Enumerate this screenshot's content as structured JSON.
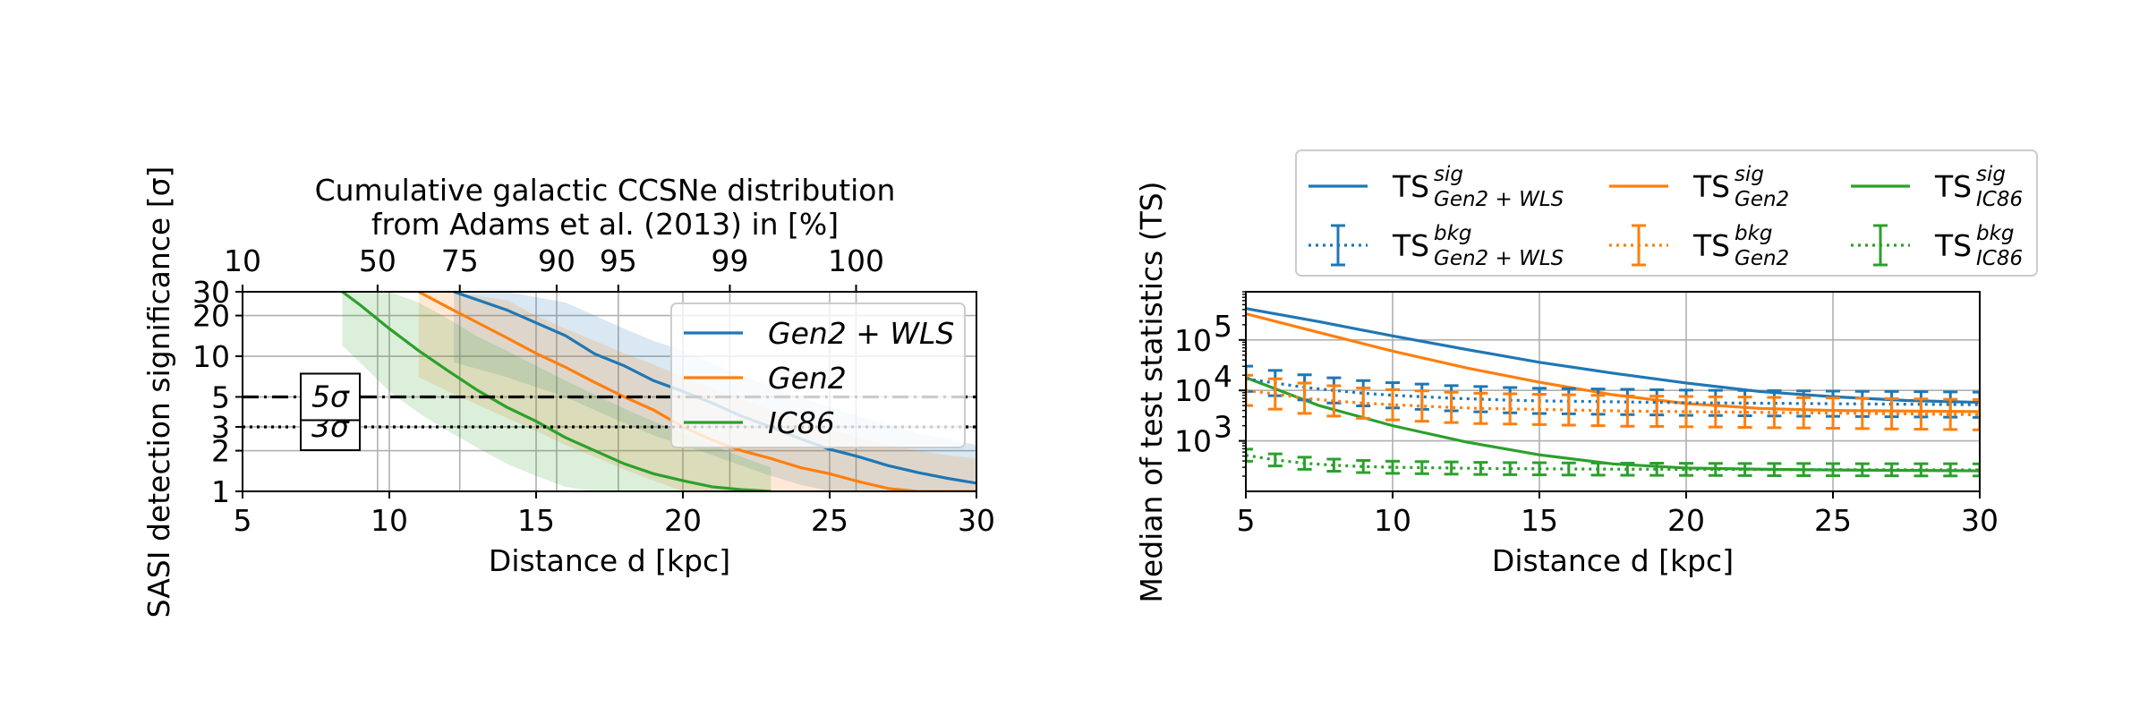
{
  "chart_data": [
    {
      "type": "line",
      "title_lines": [
        "Cumulative galactic CCSNe distribution",
        "from Adams et al. (2013) in [%]"
      ],
      "xlabel": "Distance d [kpc]",
      "ylabel": "SASI detection significance [σ]",
      "xlim": [
        5,
        30
      ],
      "ylim": [
        1,
        30
      ],
      "yscale": "log",
      "grid": true,
      "x_ticks": [
        5,
        10,
        15,
        20,
        25,
        30
      ],
      "y_ticks": [
        1,
        2,
        3,
        5,
        10,
        20,
        30
      ],
      "top_axis": {
        "labels": [
          "10",
          "50",
          "75",
          "90",
          "95",
          "99",
          "100"
        ],
        "positions_kpc": [
          5.0,
          9.6,
          12.4,
          15.7,
          17.8,
          21.6,
          25.9
        ]
      },
      "threshold_lines": [
        {
          "value": 5,
          "label": "5σ",
          "style": "dash-dot"
        },
        {
          "value": 3,
          "label": "3σ",
          "style": "dotted"
        }
      ],
      "legend": {
        "placement": "upper right",
        "entries": [
          "Gen2 + WLS",
          "Gen2",
          "IC86"
        ]
      },
      "series": [
        {
          "name": "Gen2 + WLS",
          "color": "#1f77b4",
          "x": [
            12.2,
            14,
            16,
            17,
            18,
            19,
            20,
            21,
            22,
            23,
            24,
            25,
            26,
            27,
            28,
            29,
            30
          ],
          "y": [
            30,
            22,
            14.2,
            10.4,
            8.5,
            6.6,
            5.5,
            4.5,
            3.6,
            3.0,
            2.45,
            2.05,
            1.8,
            1.55,
            1.38,
            1.25,
            1.15
          ],
          "upper": [
            30,
            30,
            25,
            20,
            16,
            13,
            11,
            8.9,
            7.2,
            6,
            5,
            4.2,
            3.6,
            3.1,
            2.7,
            2.45,
            2.2
          ],
          "lower": [
            9,
            7,
            5,
            4,
            3.2,
            2.6,
            2.2,
            1.85,
            1.55,
            1.3,
            1.12,
            1.0,
            1.0,
            1.0,
            1.0,
            1.0,
            1.0
          ]
        },
        {
          "name": "Gen2",
          "color": "#ff7f0e",
          "x": [
            11,
            12,
            14,
            15,
            16,
            17,
            18,
            19,
            20,
            21,
            22,
            23,
            24,
            25,
            26,
            27,
            28,
            29,
            30
          ],
          "y": [
            30,
            23,
            13.7,
            10.5,
            8.3,
            6.4,
            5.0,
            4.0,
            3.0,
            2.4,
            2.0,
            1.75,
            1.5,
            1.35,
            1.18,
            1.05,
            1.0,
            1.0,
            1.0
          ],
          "upper": [
            30,
            30,
            26,
            20,
            16,
            13,
            10.5,
            8.7,
            7,
            5.8,
            4.8,
            4,
            3.4,
            2.9,
            2.5,
            2.2,
            2.0,
            1.85,
            1.75
          ],
          "lower": [
            7,
            5.5,
            3.5,
            2.8,
            2.2,
            1.8,
            1.45,
            1.2,
            1.0,
            1.0,
            1.0,
            1.0,
            1.0,
            1.0,
            1.0,
            1.0,
            1.0,
            1.0,
            1.0
          ]
        },
        {
          "name": "IC86",
          "color": "#2ca02c",
          "x": [
            8.4,
            9,
            10,
            11,
            12,
            13,
            14,
            15,
            16,
            17,
            18,
            19,
            20,
            21,
            22,
            23
          ],
          "y": [
            30,
            24,
            16,
            11,
            7.8,
            5.6,
            4.2,
            3.3,
            2.5,
            2.0,
            1.6,
            1.35,
            1.2,
            1.08,
            1.03,
            1.0
          ],
          "upper": [
            30,
            30,
            30,
            25,
            19,
            14,
            11,
            8.5,
            6.6,
            5.2,
            4.1,
            3.3,
            2.7,
            2.2,
            1.8,
            1.5
          ],
          "lower": [
            12,
            9,
            5.5,
            3.8,
            2.8,
            2.1,
            1.6,
            1.3,
            1.08,
            1.0,
            1.0,
            1.0,
            1.0,
            1.0,
            1.0,
            1.0
          ]
        }
      ]
    },
    {
      "type": "line",
      "xlabel": "Distance d [kpc]",
      "ylabel": "Median of test statistics (TS)",
      "xlim": [
        5,
        30
      ],
      "ylim": [
        100,
        900000
      ],
      "yscale": "log",
      "grid": true,
      "x_ticks": [
        5,
        10,
        15,
        20,
        25,
        30
      ],
      "y_ticks": [
        1000,
        10000,
        100000
      ],
      "legend": {
        "placement": "upper center, outside",
        "columns": 3
      },
      "series": [
        {
          "name": "TS^{sig}_{Gen2+WLS}",
          "label_base": "TS",
          "label_sup": "sig",
          "label_sub": "Gen2 + WLS",
          "color": "#1f77b4",
          "style": "solid",
          "x": [
            5,
            7.5,
            10,
            12.5,
            15,
            17.5,
            20,
            22.5,
            25,
            27.5,
            30
          ],
          "y": [
            420000,
            230000,
            120000,
            65000,
            36000,
            22000,
            14000,
            9500,
            7500,
            6300,
            5800
          ]
        },
        {
          "name": "TS^{sig}_{Gen2}",
          "label_base": "TS",
          "label_sup": "sig",
          "label_sub": "Gen2",
          "color": "#ff7f0e",
          "style": "solid",
          "x": [
            5,
            7.5,
            10,
            12.5,
            15,
            17.5,
            20,
            22.5,
            25,
            27.5,
            30
          ],
          "y": [
            330000,
            140000,
            60000,
            28000,
            14500,
            8200,
            5500,
            4400,
            4000,
            3900,
            3800
          ]
        },
        {
          "name": "TS^{sig}_{IC86}",
          "label_base": "TS",
          "label_sup": "sig",
          "label_sub": "IC86",
          "color": "#2ca02c",
          "style": "solid",
          "x": [
            5,
            7.5,
            10,
            12.5,
            15,
            17.5,
            20,
            22.5,
            25,
            27.5,
            30
          ],
          "y": [
            18000,
            5000,
            2000,
            950,
            530,
            350,
            290,
            275,
            265,
            260,
            255
          ]
        },
        {
          "name": "TS^{bkg}_{Gen2+WLS}",
          "label_base": "TS",
          "label_sup": "bkg",
          "label_sub": "Gen2 + WLS",
          "color": "#1f77b4",
          "style": "dotted-errorbar",
          "x": [
            5,
            6,
            7,
            8,
            9,
            10,
            11,
            12,
            13,
            14,
            15,
            16,
            17,
            18,
            19,
            20,
            21,
            22,
            23,
            24,
            25,
            26,
            27,
            28,
            29,
            30
          ],
          "y": [
            17000,
            14000,
            11500,
            10000,
            8800,
            8000,
            7500,
            7000,
            6700,
            6400,
            6200,
            6100,
            6000,
            5900,
            5800,
            5700,
            5650,
            5600,
            5550,
            5500,
            5450,
            5400,
            5350,
            5300,
            5250,
            5200
          ],
          "err": 0.25
        },
        {
          "name": "TS^{bkg}_{Gen2}",
          "label_base": "TS",
          "label_sup": "bkg",
          "label_sub": "Gen2",
          "color": "#ff7f0e",
          "style": "dotted-errorbar",
          "x": [
            5,
            6,
            7,
            8,
            9,
            10,
            11,
            12,
            13,
            14,
            15,
            16,
            17,
            18,
            19,
            20,
            21,
            22,
            23,
            24,
            25,
            26,
            27,
            28,
            29,
            30
          ],
          "y": [
            10000,
            8500,
            7000,
            6200,
            5600,
            5200,
            4900,
            4600,
            4400,
            4300,
            4200,
            4100,
            4000,
            3900,
            3850,
            3800,
            3750,
            3700,
            3650,
            3600,
            3550,
            3500,
            3450,
            3400,
            3350,
            3300
          ],
          "err": 0.3
        },
        {
          "name": "TS^{bkg}_{IC86}",
          "label_base": "TS",
          "label_sup": "bkg",
          "label_sub": "IC86",
          "color": "#2ca02c",
          "style": "dotted-errorbar",
          "x": [
            5,
            6,
            7,
            8,
            9,
            10,
            11,
            12,
            13,
            14,
            15,
            16,
            17,
            18,
            19,
            20,
            21,
            22,
            23,
            24,
            25,
            26,
            27,
            28,
            29,
            30
          ],
          "y": [
            520,
            420,
            360,
            330,
            310,
            300,
            295,
            290,
            285,
            282,
            280,
            278,
            276,
            275,
            274,
            273,
            272,
            271,
            270,
            270,
            269,
            268,
            268,
            267,
            267,
            266
          ],
          "err": 0.12
        }
      ]
    }
  ]
}
